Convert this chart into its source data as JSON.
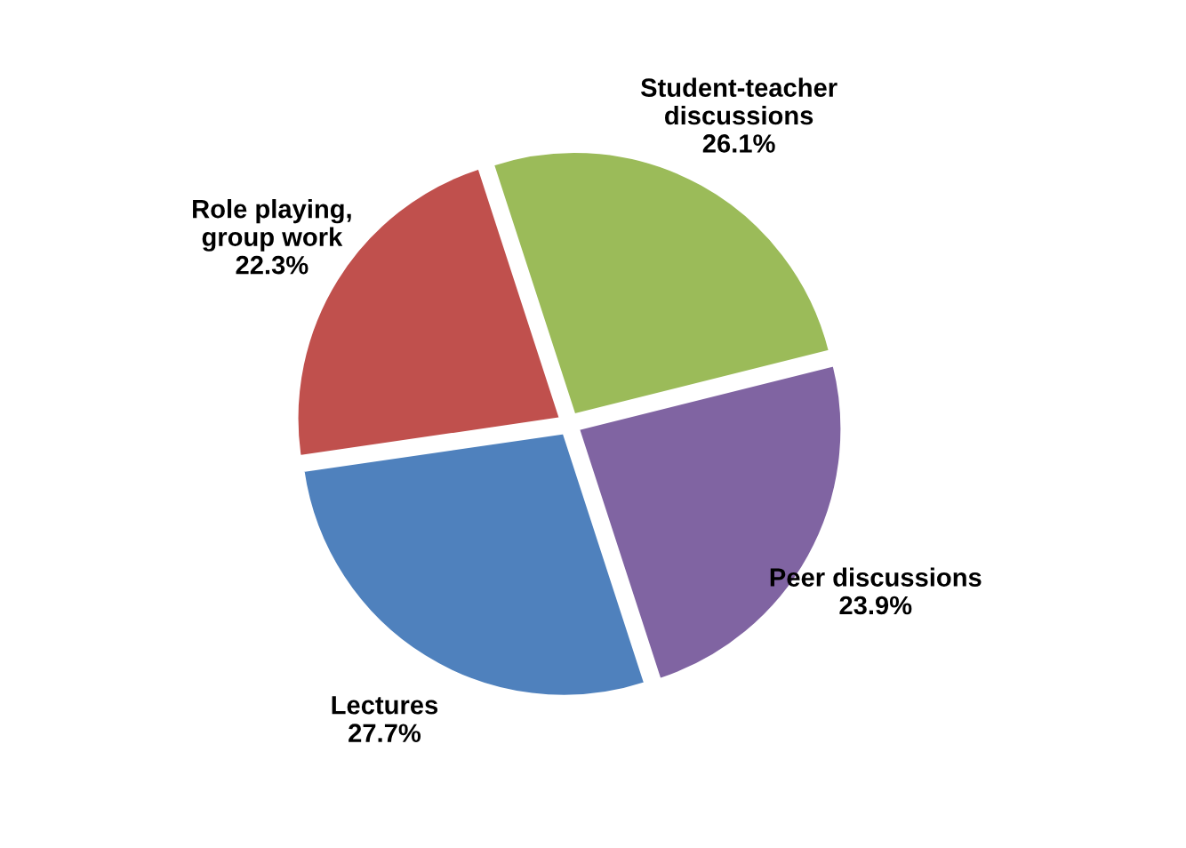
{
  "chart_data": {
    "type": "pie",
    "categories": [
      "Student-teacher\ndiscussions",
      "Peer discussions",
      "Lectures",
      "Role playing,\ngroup work"
    ],
    "values": [
      26.1,
      23.9,
      27.7,
      22.3
    ],
    "colors": [
      "#9bbb59",
      "#8064a2",
      "#4f81bd",
      "#c0504d"
    ],
    "value_labels": [
      "26.1%",
      "23.9%",
      "27.7%",
      "22.3%"
    ],
    "legend": false
  }
}
